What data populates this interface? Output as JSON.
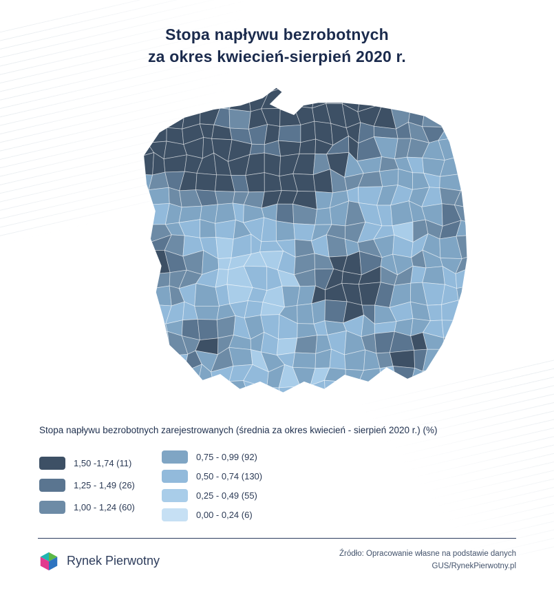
{
  "title": {
    "line1": "Stopa napływu bezrobotnych",
    "line2": "za okres kwiecień-sierpień 2020 r."
  },
  "legend": {
    "heading": "Stopa napływu bezrobotnych zarejestrowanych (średnia za okres kwiecień - sierpień 2020 r.) (%)",
    "columns": {
      "left": [
        {
          "label": "1,50 -1,74 (11)",
          "color": "#3d5065"
        },
        {
          "label": "1,25 - 1,49 (26)",
          "color": "#5a7590"
        },
        {
          "label": "1,00 - 1,24 (60)",
          "color": "#6d8ba6"
        }
      ],
      "right": [
        {
          "label": "0,75 - 0,99 (92)",
          "color": "#7fa5c4"
        },
        {
          "label": "0,50 - 0,74 (130)",
          "color": "#92badb"
        },
        {
          "label": "0,25 - 0,49 (55)",
          "color": "#a9cde9"
        },
        {
          "label": "0,00 - 0,24 (6)",
          "color": "#c6e0f4"
        }
      ]
    }
  },
  "chart_data": {
    "type": "heatmap",
    "subtype": "choropleth",
    "region": "Polska - powiaty",
    "title": "Stopa napływu bezrobotnych za okres kwiecień-sierpień 2020 r.",
    "measure": "Stopa napływu bezrobotnych zarejestrowanych (średnia za okres kwiecień - sierpień 2020 r.) (%)",
    "legend_position": "bottom",
    "classes": [
      {
        "range": "1,50 -1,74",
        "count": 11,
        "color": "#3d5065"
      },
      {
        "range": "1,25 - 1,49",
        "count": 26,
        "color": "#5a7590"
      },
      {
        "range": "1,00 - 1,24",
        "count": 60,
        "color": "#6d8ba6"
      },
      {
        "range": "0,75 - 0,99",
        "count": 92,
        "color": "#7fa5c4"
      },
      {
        "range": "0,50 - 0,74",
        "count": 130,
        "color": "#92badb"
      },
      {
        "range": "0,25 - 0,49",
        "count": 55,
        "color": "#a9cde9"
      },
      {
        "range": "0,00 - 0,24",
        "count": 6,
        "color": "#c6e0f4"
      }
    ]
  },
  "footer": {
    "brand": "Rynek Pierwotny",
    "source_line1": "Źródło: Opracowanie własne na podstawie danych",
    "source_line2": "GUS/RynekPierwotny.pl",
    "logo_colors": {
      "teal": "#1fb5b1",
      "green": "#5cb947",
      "pink": "#e23a8e",
      "blue": "#2d74c0"
    }
  },
  "colors": {
    "title": "#1b2b4d",
    "text": "#2b3a55",
    "divider": "#2b3b5c",
    "background": "#ffffff"
  }
}
